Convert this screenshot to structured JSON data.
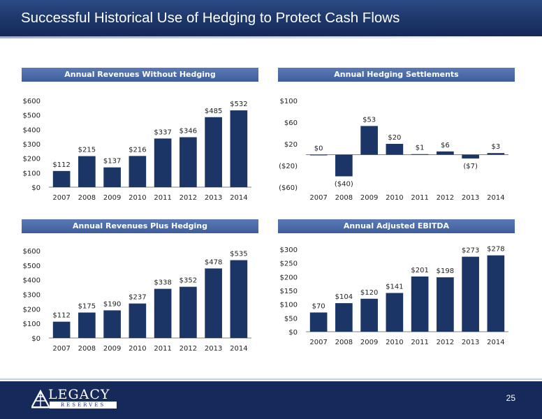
{
  "header": {
    "title": "Successful Historical Use of Hedging to Protect Cash Flows"
  },
  "footer": {
    "page_number": "25",
    "logo_main": "LEGACY",
    "logo_sub": "RESERVES"
  },
  "colors": {
    "bar": "#1b3567",
    "header": "#1d3668",
    "panel_title": "#4a6aa8",
    "footer": "#152a5a"
  },
  "icons": {
    "logo": "oil-derrick-icon"
  },
  "chart_data": [
    {
      "type": "bar",
      "title": "Annual Revenues Without Hedging",
      "categories": [
        "2007",
        "2008",
        "2009",
        "2010",
        "2011",
        "2012",
        "2013",
        "2014"
      ],
      "values": [
        112,
        215,
        137,
        216,
        337,
        346,
        485,
        532
      ],
      "labels": [
        "$112",
        "$215",
        "$137",
        "$216",
        "$337",
        "$346",
        "$485",
        "$532"
      ],
      "yticks": [
        0,
        100,
        200,
        300,
        400,
        500,
        600
      ],
      "ytick_labels": [
        "$0",
        "$100",
        "$200",
        "$300",
        "$400",
        "$500",
        "$600"
      ],
      "ylim": [
        0,
        600
      ]
    },
    {
      "type": "bar",
      "title": "Annual Hedging Settlements",
      "categories": [
        "2007",
        "2008",
        "2009",
        "2010",
        "2011",
        "2012",
        "2013",
        "2014"
      ],
      "values": [
        0,
        -40,
        53,
        20,
        1,
        6,
        -7,
        3
      ],
      "labels": [
        "$0",
        "($40)",
        "$53",
        "$20",
        "$1",
        "$6",
        "($7)",
        "$3"
      ],
      "yticks": [
        -60,
        -20,
        20,
        60,
        100
      ],
      "ytick_labels": [
        "($60)",
        "($20)",
        "$20",
        "$60",
        "$100"
      ],
      "ylim": [
        -60,
        100
      ]
    },
    {
      "type": "bar",
      "title": "Annual Revenues Plus Hedging",
      "categories": [
        "2007",
        "2008",
        "2009",
        "2010",
        "2011",
        "2012",
        "2013",
        "2014"
      ],
      "values": [
        112,
        175,
        190,
        237,
        338,
        352,
        478,
        535
      ],
      "labels": [
        "$112",
        "$175",
        "$190",
        "$237",
        "$338",
        "$352",
        "$478",
        "$535"
      ],
      "yticks": [
        0,
        100,
        200,
        300,
        400,
        500,
        600
      ],
      "ytick_labels": [
        "$0",
        "$100",
        "$200",
        "$300",
        "$400",
        "$500",
        "$600"
      ],
      "ylim": [
        0,
        600
      ]
    },
    {
      "type": "bar",
      "title": "Annual Adjusted EBITDA",
      "categories": [
        "2007",
        "2008",
        "2009",
        "2010",
        "2011",
        "2012",
        "2013",
        "2014"
      ],
      "values": [
        70,
        104,
        120,
        141,
        201,
        198,
        273,
        278
      ],
      "labels": [
        "$70",
        "$104",
        "$120",
        "$141",
        "$201",
        "$198",
        "$273",
        "$278"
      ],
      "yticks": [
        0,
        50,
        100,
        150,
        200,
        250,
        300
      ],
      "ytick_labels": [
        "$0",
        "$50",
        "$100",
        "$150",
        "$200",
        "$250",
        "$300"
      ],
      "ylim": [
        0,
        300
      ]
    }
  ]
}
